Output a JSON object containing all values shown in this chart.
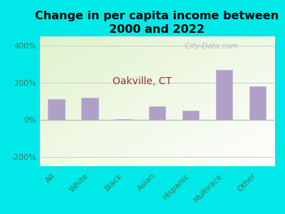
{
  "title": "Change in per capita income between\n2000 and 2022",
  "subtitle": "Oakville, CT",
  "categories": [
    "All",
    "White",
    "Black",
    "Asian",
    "Hispanic",
    "Multirace",
    "Other"
  ],
  "values": [
    110,
    120,
    2,
    75,
    50,
    270,
    180
  ],
  "bar_color": "#b0a0c8",
  "bar_edge_color": "#c0b0d8",
  "title_fontsize": 11.5,
  "subtitle_fontsize": 10,
  "subtitle_color": "#993333",
  "background_outer": "#00e8e8",
  "ylim": [
    -250,
    450
  ],
  "yticks": [
    -200,
    0,
    200,
    400
  ],
  "yticklabels": [
    "-200%",
    "0%",
    "200%",
    "400%"
  ],
  "watermark": "  City-Data.com",
  "tick_label_color": "#447755",
  "grid_color": "#cccccc"
}
